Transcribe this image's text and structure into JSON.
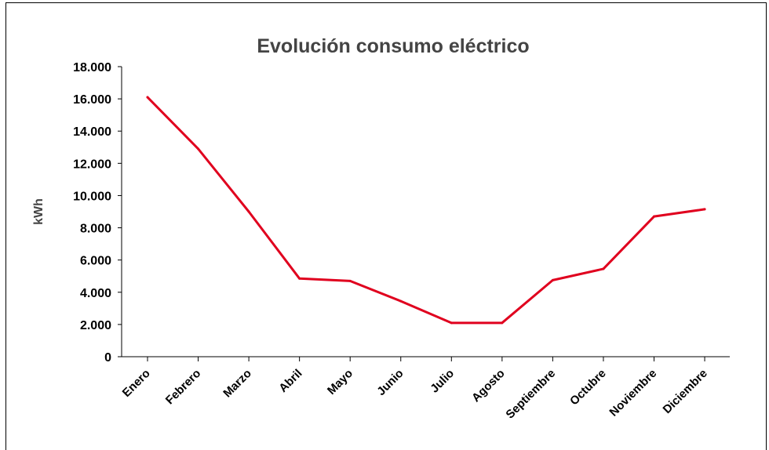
{
  "chart_data": {
    "type": "line",
    "title": "Evolución consumo eléctrico",
    "xlabel": "",
    "ylabel": "kWh",
    "categories": [
      "Enero",
      "Febrero",
      "Marzo",
      "Abril",
      "Mayo",
      "Junio",
      "Julio",
      "Agosto",
      "Septiembre",
      "Octubre",
      "Noviembre",
      "Diciembre"
    ],
    "series": [
      {
        "values": [
          16100,
          12900,
          9000,
          4850,
          4700,
          3450,
          2100,
          2100,
          4750,
          5450,
          8700,
          9150
        ],
        "color": "#e0001e"
      }
    ],
    "ylim": [
      0,
      18000
    ],
    "yticks": [
      0,
      2000,
      4000,
      6000,
      8000,
      10000,
      12000,
      14000,
      16000,
      18000
    ],
    "ytick_labels": [
      "0",
      "2.000",
      "4.000",
      "6.000",
      "8.000",
      "10.000",
      "12.000",
      "14.000",
      "16.000",
      "18.000"
    ],
    "grid": false,
    "legend": "none"
  }
}
